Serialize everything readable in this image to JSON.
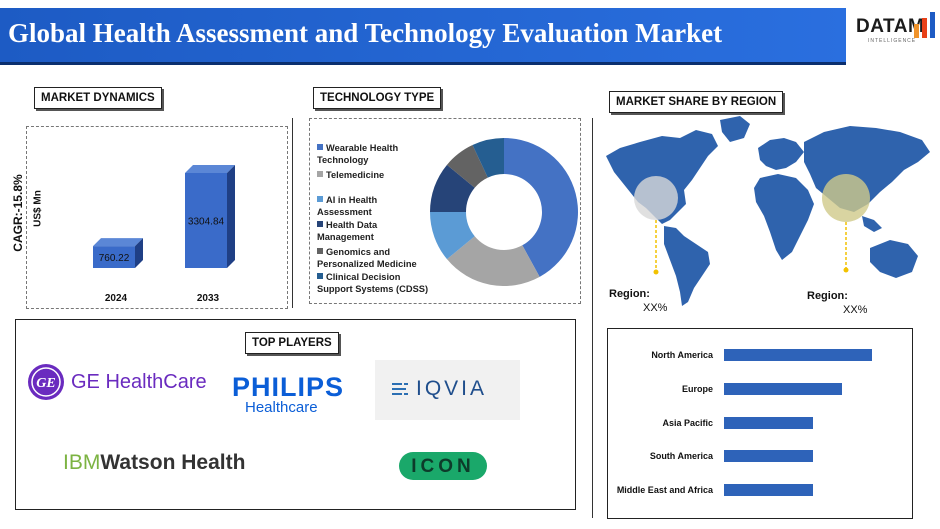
{
  "header": {
    "title": "Global Health Assessment and Technology Evaluation Market",
    "logo_text": "DATAM",
    "logo_sub": "INTELLIGENCE"
  },
  "sections": {
    "dynamics": "MARKET DYNAMICS",
    "technology": "TECHNOLOGY TYPE",
    "region": "MARKET SHARE BY REGION",
    "players": "TOP PLAYERS"
  },
  "dynamics": {
    "cagr": "CAGR:-15.8%",
    "ylabel": "US$ Mn"
  },
  "map": {
    "region1_label": "Region:",
    "region1_value": "XX%",
    "region2_label": "Region:",
    "region2_value": "XX%"
  },
  "players": {
    "ge": "GE HealthCare",
    "philips_top": "PHILIPS",
    "philips_bottom": "Healthcare",
    "iqvia": "IQVIA",
    "ibm_prefix": "IBM",
    "ibm_rest": "Watson Health",
    "icon": "ICON"
  },
  "chart_data": [
    {
      "type": "bar",
      "categories": [
        "2024",
        "2033"
      ],
      "values": [
        760.22,
        3304.84
      ],
      "data_labels": [
        "760.22",
        "3304.84"
      ],
      "ylabel": "US$ Mn",
      "color": "#3a6bc9"
    },
    {
      "type": "pie",
      "donut": true,
      "categories": [
        "Wearable Health Technology",
        "Telemedicine",
        "AI in Health Assessment",
        "Health Data Management",
        "Genomics and Personalized Medicine",
        "Clinical Decision Support Systems (CDSS)"
      ],
      "values": [
        42,
        22,
        11,
        11,
        7,
        7
      ],
      "colors": [
        "#4472c4",
        "#a5a5a5",
        "#5b9bd5",
        "#264478",
        "#636363",
        "#255e91"
      ]
    },
    {
      "type": "bar",
      "orientation": "horizontal",
      "categories": [
        "North America",
        "Europe",
        "Asia Pacific",
        "South America",
        "Middle East and Africa"
      ],
      "values": [
        100,
        80,
        60,
        60,
        60
      ],
      "color": "#2e63b9"
    }
  ]
}
